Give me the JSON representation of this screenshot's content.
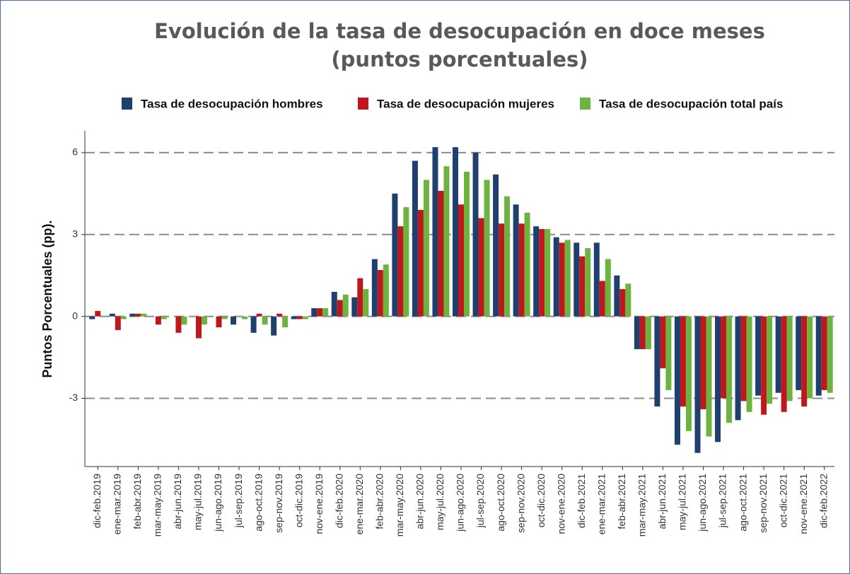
{
  "chart_data": {
    "type": "bar",
    "title": "Evolución de la tasa de desocupación en doce meses",
    "subtitle": "(puntos porcentuales)",
    "y_label": "Puntos Porcentuales (pp).",
    "categories": [
      "dic-feb.2019",
      "ene-mar.2019",
      "feb-abr.2019",
      "mar-may.2019",
      "abr-jun.2019",
      "may-jul.2019",
      "jun-ago.2019",
      "jul-sep.2019",
      "ago-oct.2019",
      "sep-nov.2019",
      "oct-dic.2019",
      "nov-ene.2019",
      "dic-feb.2020",
      "ene-mar.2020",
      "feb-abr.2020",
      "mar-may.2020",
      "abr-jun.2020",
      "may-jul.2020",
      "jun-ago.2020",
      "jul-sep.2020",
      "ago-oct.2020",
      "sep-nov.2020",
      "oct-dic.2020",
      "nov-ene.2020",
      "dic-feb.2021",
      "ene-mar.2021",
      "feb-abr.2021",
      "mar-may.2021",
      "abr-jun.2021",
      "may-jul.2021",
      "jun-ago.2021",
      "jul-sep.2021",
      "ago-oct.2021",
      "sep-nov.2021",
      "oct-dic.2021",
      "nov-ene.2021",
      "dic-feb.2022"
    ],
    "series": [
      {
        "name": "Tasa de desocupación hombres",
        "color": "#1f3f6e",
        "values": [
          -0.1,
          0.1,
          0.1,
          0,
          0,
          0,
          0,
          -0.3,
          -0.6,
          -0.7,
          -0.1,
          0.3,
          0.9,
          0.7,
          2.1,
          4.5,
          5.7,
          6.2,
          6.2,
          6.0,
          5.2,
          4.1,
          3.3,
          2.9,
          2.7,
          2.7,
          1.5,
          -1.2,
          -3.3,
          -4.7,
          -5.0,
          -4.6,
          -3.8,
          -2.9,
          -2.8,
          -2.7,
          -2.9
        ]
      },
      {
        "name": "Tasa de desocupación mujeres",
        "color": "#c0171c",
        "values": [
          0.2,
          -0.5,
          0.1,
          -0.3,
          -0.6,
          -0.8,
          -0.4,
          0,
          0.1,
          0.1,
          -0.1,
          0.3,
          0.6,
          1.4,
          1.7,
          3.3,
          3.9,
          4.6,
          4.1,
          3.6,
          3.4,
          3.4,
          3.2,
          2.7,
          2.2,
          1.3,
          1.0,
          -1.2,
          -1.9,
          -3.3,
          -3.4,
          -3.0,
          -3.1,
          -3.6,
          -3.5,
          -3.3,
          -2.7
        ]
      },
      {
        "name": "Tasa de desocupación total país",
        "color": "#6db33f",
        "values": [
          0,
          -0.1,
          0.1,
          -0.1,
          -0.3,
          -0.3,
          -0.1,
          -0.1,
          -0.3,
          -0.4,
          -0.1,
          0.3,
          0.8,
          1.0,
          1.9,
          4.0,
          5.0,
          5.5,
          5.3,
          5.0,
          4.4,
          3.8,
          3.2,
          2.8,
          2.5,
          2.1,
          1.2,
          -1.2,
          -2.7,
          -4.2,
          -4.4,
          -3.9,
          -3.5,
          -3.2,
          -3.1,
          -3.0,
          -2.8
        ]
      }
    ],
    "ylim": [
      -5.5,
      6.8
    ],
    "yticks": [
      -3,
      0,
      3,
      6
    ],
    "grid": true
  }
}
